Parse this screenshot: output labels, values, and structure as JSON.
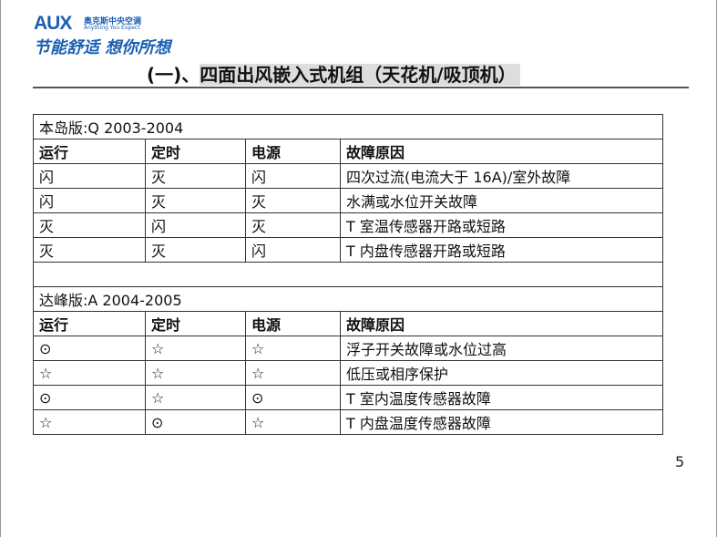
{
  "logo": {
    "brand": "AUX",
    "brand_cn": "奥克斯中央空调",
    "tagline_en": "Anything You Expect",
    "slogan": "节能舒适 想你所想",
    "color": "#1a5fb4"
  },
  "title": {
    "prefix": "(一)、",
    "main": "四面出风嵌入式机组（天花机/吸顶机）"
  },
  "headers": [
    "运行",
    "定时",
    "电源",
    "故障原因"
  ],
  "section1": {
    "label": "本岛版:Q 2003-2004",
    "rows": [
      [
        "闪",
        "灭",
        "闪",
        "四次过流(电流大于 16A)/室外故障"
      ],
      [
        "闪",
        "灭",
        "灭",
        "水满或水位开关故障"
      ],
      [
        "灭",
        "闪",
        "灭",
        "T 室温传感器开路或短路"
      ],
      [
        "灭",
        "灭",
        "闪",
        "T 内盘传感器开路或短路"
      ]
    ]
  },
  "section2": {
    "label": "达峰版:A 2004-2005",
    "rows": [
      [
        "⊙",
        "☆",
        "☆",
        "浮子开关故障或水位过高"
      ],
      [
        "☆",
        "☆",
        "☆",
        "低压或相序保护"
      ],
      [
        "⊙",
        "☆",
        "⊙",
        "T 室内温度传感器故障"
      ],
      [
        "☆",
        "⊙",
        "☆",
        "T 内盘温度传感器故障"
      ]
    ]
  },
  "page_number": "5"
}
